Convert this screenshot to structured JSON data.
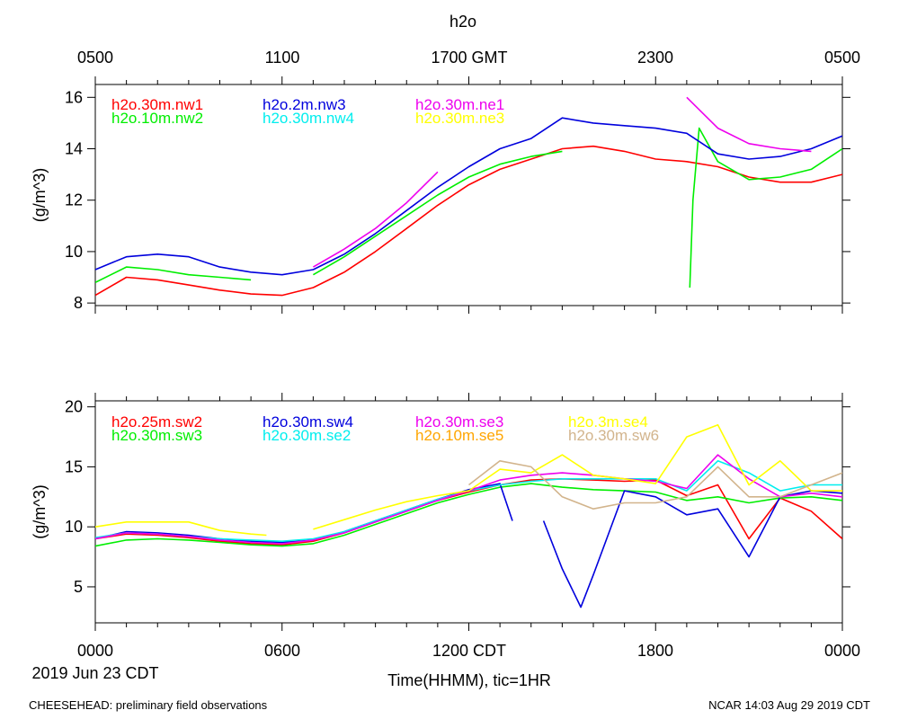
{
  "page": {
    "title": "h2o",
    "top_axis_labels": [
      "0500",
      "1100",
      "1700 GMT",
      "2300",
      "0500"
    ],
    "bottom_axis_labels": [
      "0000",
      "0600",
      "1200 CDT",
      "1800",
      "0000"
    ],
    "date_label": "2019 Jun 23 CDT",
    "xlabel": "Time(HHMM), tic=1HR",
    "footer_left": "CHEESEHEAD: preliminary field observations",
    "footer_right": "NCAR 14:03 Aug 29 2019 CDT"
  },
  "chart_data": [
    {
      "type": "line",
      "title": "h2o",
      "ylabel": "(g/m^3)",
      "xlim": [
        0,
        24
      ],
      "ylim": [
        7.9,
        16.5
      ],
      "yticks": [
        8,
        10,
        12,
        14,
        16
      ],
      "series": [
        {
          "name": "h2o.30m.nw1",
          "color": "#ff0000",
          "x": [
            0,
            1,
            2,
            3,
            4,
            5,
            6,
            7,
            8,
            9,
            10,
            11,
            12,
            13,
            14,
            15,
            16,
            17,
            18,
            19,
            20,
            21,
            22,
            23,
            24
          ],
          "y": [
            8.3,
            9.0,
            8.9,
            8.7,
            8.5,
            8.35,
            8.3,
            8.6,
            9.2,
            10.0,
            10.9,
            11.8,
            12.6,
            13.2,
            13.6,
            14.0,
            14.1,
            13.9,
            13.6,
            13.5,
            13.3,
            12.9,
            12.7,
            12.7,
            13.0
          ]
        },
        {
          "name": "h2o.10m.nw2",
          "color": "#00ee00",
          "x": [
            0,
            1,
            2,
            3,
            4,
            5
          ],
          "y": [
            8.8,
            9.4,
            9.3,
            9.1,
            9.0,
            8.9
          ],
          "x2": [
            7,
            8,
            9,
            10,
            11,
            12,
            13,
            14,
            15
          ],
          "y2": [
            9.1,
            9.8,
            10.6,
            11.4,
            12.2,
            12.9,
            13.4,
            13.7,
            13.9
          ],
          "x3": [
            19.1,
            19.2,
            19.4,
            20,
            21,
            22,
            23,
            24
          ],
          "y3": [
            8.6,
            12.0,
            14.8,
            13.5,
            12.8,
            12.9,
            13.2,
            14.0
          ]
        },
        {
          "name": "h2o.2m.nw3",
          "color": "#0000dd",
          "x": [
            0,
            1,
            2,
            3,
            4,
            5,
            6,
            7,
            8,
            9,
            10,
            11,
            12,
            13,
            14,
            15,
            16,
            17,
            18,
            19,
            20,
            21,
            22,
            23,
            24
          ],
          "y": [
            9.3,
            9.8,
            9.9,
            9.8,
            9.4,
            9.2,
            9.1,
            9.3,
            9.9,
            10.7,
            11.6,
            12.5,
            13.3,
            14.0,
            14.4,
            15.2,
            15.0,
            14.9,
            14.8,
            14.6,
            13.8,
            13.6,
            13.7,
            14.0,
            14.5
          ]
        },
        {
          "name": "h2o.30m.nw4",
          "color": "#00eeee",
          "x": [],
          "y": []
        },
        {
          "name": "h2o.30m.ne1",
          "color": "#ee00ee",
          "x": [
            7,
            8,
            9,
            10,
            11
          ],
          "y": [
            9.4,
            10.1,
            10.9,
            11.9,
            13.1
          ],
          "x2": [
            19,
            20,
            21,
            22,
            23
          ],
          "y2": [
            16.0,
            14.8,
            14.2,
            14.0,
            13.9
          ]
        },
        {
          "name": "h2o.30m.ne3",
          "color": "#ffff00",
          "x": [],
          "y": []
        }
      ]
    },
    {
      "type": "line",
      "ylabel": "(g/m^3)",
      "xlim": [
        0,
        24
      ],
      "ylim": [
        2,
        20.5
      ],
      "yticks": [
        5,
        10,
        15,
        20
      ],
      "series": [
        {
          "name": "h2o.25m.sw2",
          "color": "#ff0000",
          "x": [
            0,
            1,
            2,
            3,
            4,
            5,
            6,
            7,
            8,
            9,
            10,
            11,
            12,
            13,
            14,
            15,
            16,
            17,
            18,
            19,
            20,
            21,
            22,
            23,
            24
          ],
          "y": [
            9.0,
            9.4,
            9.3,
            9.1,
            8.8,
            8.6,
            8.5,
            8.8,
            9.5,
            10.4,
            11.3,
            12.2,
            12.9,
            13.5,
            13.9,
            14.0,
            13.9,
            13.8,
            13.9,
            12.6,
            13.5,
            9.0,
            12.4,
            11.3,
            9.0
          ]
        },
        {
          "name": "h2o.30m.sw3",
          "color": "#00ee00",
          "x": [
            0,
            1,
            2,
            3,
            4,
            5,
            6,
            7,
            8,
            9,
            10,
            11,
            12,
            13,
            14,
            15,
            16,
            17,
            18,
            19,
            20,
            21,
            22,
            23,
            24
          ],
          "y": [
            8.4,
            8.9,
            9.0,
            8.9,
            8.7,
            8.5,
            8.4,
            8.6,
            9.3,
            10.2,
            11.1,
            12.0,
            12.7,
            13.3,
            13.6,
            13.3,
            13.1,
            13.0,
            12.9,
            12.2,
            12.5,
            12.0,
            12.4,
            12.5,
            12.2
          ]
        },
        {
          "name": "h2o.30m.sw4",
          "color": "#0000dd",
          "x": [
            0,
            1,
            2,
            3,
            4,
            5,
            6,
            7,
            8,
            9,
            10,
            11,
            12,
            13,
            13.4
          ],
          "y": [
            9.0,
            9.6,
            9.5,
            9.3,
            9.0,
            8.8,
            8.7,
            8.9,
            9.6,
            10.5,
            11.4,
            12.3,
            13.1,
            13.6,
            10.5
          ],
          "x2": [
            14.4,
            15,
            15.6,
            16,
            17,
            18,
            19,
            20,
            21,
            22,
            23,
            24
          ],
          "y2": [
            10.5,
            6.5,
            3.3,
            6.0,
            13.0,
            12.5,
            11.0,
            11.5,
            7.5,
            12.5,
            13.0,
            12.8
          ]
        },
        {
          "name": "h2o.30m.se2",
          "color": "#00eeee",
          "x": [
            0,
            1,
            2,
            3,
            4,
            5,
            6,
            7,
            8,
            9,
            10,
            11,
            12,
            13,
            14,
            15,
            16,
            17,
            18,
            19,
            20,
            21,
            22,
            23,
            24
          ],
          "y": [
            9.1,
            9.5,
            9.4,
            9.2,
            9.0,
            8.9,
            8.8,
            9.0,
            9.6,
            10.5,
            11.4,
            12.3,
            13.0,
            13.5,
            13.8,
            14.0,
            14.0,
            14.0,
            14.0,
            13.0,
            15.5,
            14.5,
            13.0,
            13.5,
            13.5
          ]
        },
        {
          "name": "h2o.30m.se3",
          "color": "#ee00ee",
          "x": [
            0,
            1,
            2,
            3,
            4,
            5,
            6,
            7,
            8,
            9,
            10,
            11,
            12,
            13,
            14,
            15,
            16,
            17,
            18,
            19,
            20,
            21,
            22,
            23,
            24
          ],
          "y": [
            9.0,
            9.5,
            9.4,
            9.2,
            8.9,
            8.7,
            8.6,
            8.9,
            9.5,
            10.4,
            11.3,
            12.2,
            13.0,
            13.9,
            14.3,
            14.5,
            14.3,
            14.0,
            13.8,
            13.2,
            16.0,
            14.0,
            12.5,
            12.8,
            12.5
          ]
        },
        {
          "name": "h2o.10m.se5",
          "color": "#ffa500",
          "x": [],
          "y": []
        },
        {
          "name": "h2o.3m.se4",
          "color": "#ffff00",
          "x": [
            0,
            1,
            2,
            3,
            4,
            5,
            5.5
          ],
          "y": [
            10.0,
            10.4,
            10.4,
            10.4,
            9.7,
            9.4,
            9.3
          ],
          "x2": [
            7,
            8,
            9,
            10,
            11,
            12,
            13,
            14,
            15,
            16,
            17,
            18,
            19,
            20,
            21,
            22,
            23,
            24
          ],
          "y2": [
            9.8,
            10.6,
            11.4,
            12.1,
            12.6,
            13.0,
            14.8,
            14.5,
            16.0,
            14.3,
            14.0,
            13.6,
            17.5,
            18.5,
            13.5,
            15.5,
            13.0,
            13.0
          ]
        },
        {
          "name": "h2o.30m.sw6",
          "color": "#d2b48c",
          "x": [
            12,
            13,
            14,
            15,
            16,
            17,
            18,
            19,
            20,
            21,
            22,
            23,
            24
          ],
          "y": [
            13.5,
            15.5,
            15.0,
            12.5,
            11.5,
            12.0,
            12.0,
            12.5,
            15.0,
            12.5,
            12.5,
            13.5,
            14.5
          ]
        }
      ]
    }
  ]
}
